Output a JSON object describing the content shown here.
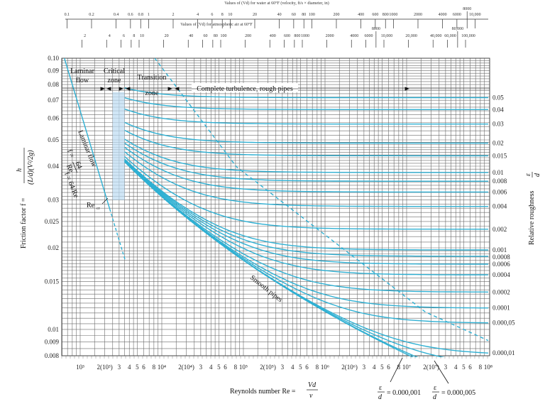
{
  "chart_data": {
    "type": "line",
    "title": "",
    "xlabel": "Reynolds number Re = Vd/ν",
    "xlabel_parts": {
      "text": "Reynolds number Re =",
      "num": "Vd",
      "den": "ν"
    },
    "ylabel": "Friction factor f = h / ((L/d)(V²/2g))",
    "ylabel_parts": {
      "text": "Friction factor f =",
      "num": "h",
      "den": "(L/d)(V²/2g)"
    },
    "right_label": "Relative roughness ε/d",
    "right_label_parts": {
      "text": "Relative roughness",
      "num": "ε",
      "den": "d"
    },
    "xscale": "log",
    "yscale": "log",
    "xlim": [
      600,
      100000000
    ],
    "ylim": [
      0.008,
      0.1
    ],
    "grid": true,
    "x_ticks": [
      {
        "re": 1000,
        "label": "10³"
      },
      {
        "re": 2000,
        "label": "2(10³)"
      },
      {
        "re": 3000,
        "label": "3"
      },
      {
        "re": 4000,
        "label": "4"
      },
      {
        "re": 5000,
        "label": "5"
      },
      {
        "re": 6000,
        "label": "6"
      },
      {
        "re": 8000,
        "label": "8"
      },
      {
        "re": 10000,
        "label": "10⁴"
      },
      {
        "re": 20000,
        "label": "2(10⁴)"
      },
      {
        "re": 30000,
        "label": "3"
      },
      {
        "re": 40000,
        "label": "4"
      },
      {
        "re": 50000,
        "label": "5"
      },
      {
        "re": 60000,
        "label": "6"
      },
      {
        "re": 80000,
        "label": "8"
      },
      {
        "re": 100000,
        "label": "10⁵"
      },
      {
        "re": 200000,
        "label": "2(10⁵)"
      },
      {
        "re": 300000,
        "label": "3"
      },
      {
        "re": 400000,
        "label": "4"
      },
      {
        "re": 500000,
        "label": "5"
      },
      {
        "re": 600000,
        "label": "6"
      },
      {
        "re": 800000,
        "label": "8"
      },
      {
        "re": 1000000,
        "label": "10⁶"
      },
      {
        "re": 2000000,
        "label": "2(10⁶)"
      },
      {
        "re": 3000000,
        "label": "3"
      },
      {
        "re": 4000000,
        "label": "4"
      },
      {
        "re": 5000000,
        "label": "5"
      },
      {
        "re": 6000000,
        "label": "6"
      },
      {
        "re": 8000000,
        "label": "8"
      },
      {
        "re": 10000000,
        "label": "10⁷"
      },
      {
        "re": 20000000,
        "label": "2(10⁷)"
      },
      {
        "re": 30000000,
        "label": "3"
      },
      {
        "re": 40000000,
        "label": "4"
      },
      {
        "re": 50000000,
        "label": "5"
      },
      {
        "re": 60000000,
        "label": "6"
      },
      {
        "re": 80000000,
        "label": "8"
      },
      {
        "re": 100000000,
        "label": "10⁸"
      }
    ],
    "y_ticks": [
      {
        "f": 0.1,
        "label": "0.10"
      },
      {
        "f": 0.09,
        "label": "0.09"
      },
      {
        "f": 0.08,
        "label": "0.08"
      },
      {
        "f": 0.07,
        "label": "0.07"
      },
      {
        "f": 0.06,
        "label": "0.06"
      },
      {
        "f": 0.05,
        "label": "0.05"
      },
      {
        "f": 0.04,
        "label": "0.04"
      },
      {
        "f": 0.03,
        "label": "0.03"
      },
      {
        "f": 0.025,
        "label": "0.025"
      },
      {
        "f": 0.02,
        "label": "0.02"
      },
      {
        "f": 0.015,
        "label": "0.015"
      },
      {
        "f": 0.01,
        "label": "0.01"
      },
      {
        "f": 0.009,
        "label": "0.009"
      },
      {
        "f": 0.008,
        "label": "0.008"
      }
    ],
    "top_water_scale": {
      "title": "Values of (Vd) for water at 60°F (velocity, ft/s × diameter, in)",
      "re_per_unit": 6887,
      "ticks": [
        {
          "v": 0.1,
          "label": "0.1"
        },
        {
          "v": 0.2,
          "label": "0.2"
        },
        {
          "v": 0.4,
          "label": "0.4"
        },
        {
          "v": 0.6,
          "label": "0.6"
        },
        {
          "v": 0.8,
          "label": "0.8"
        },
        {
          "v": 1,
          "label": "1"
        },
        {
          "v": 2,
          "label": "2"
        },
        {
          "v": 4,
          "label": "4"
        },
        {
          "v": 6,
          "label": "6"
        },
        {
          "v": 8,
          "label": "8"
        },
        {
          "v": 10,
          "label": "10"
        },
        {
          "v": 20,
          "label": "20"
        },
        {
          "v": 40,
          "label": "40"
        },
        {
          "v": 60,
          "label": "60"
        },
        {
          "v": 80,
          "label": "80"
        },
        {
          "v": 100,
          "label": "100"
        },
        {
          "v": 200,
          "label": "200"
        },
        {
          "v": 400,
          "label": "400"
        },
        {
          "v": 600,
          "label": "600"
        },
        {
          "v": 800,
          "label": "800"
        },
        {
          "v": 1000,
          "label": "1000"
        },
        {
          "v": 2000,
          "label": "2000"
        },
        {
          "v": 4000,
          "label": "4000"
        },
        {
          "v": 6000,
          "label": "6000"
        },
        {
          "v": 8000,
          "label": "8000"
        },
        {
          "v": 10000,
          "label": "10,000"
        }
      ]
    },
    "top_air_scale": {
      "title": "Values of (Vd) for atmospheric air at 60°F",
      "re_per_unit": 527,
      "ticks": [
        {
          "v": 2,
          "label": "2"
        },
        {
          "v": 4,
          "label": "4"
        },
        {
          "v": 6,
          "label": "6"
        },
        {
          "v": 8,
          "label": "8"
        },
        {
          "v": 10,
          "label": "10"
        },
        {
          "v": 20,
          "label": "20"
        },
        {
          "v": 40,
          "label": "40"
        },
        {
          "v": 60,
          "label": "60"
        },
        {
          "v": 80,
          "label": "80"
        },
        {
          "v": 100,
          "label": "100"
        },
        {
          "v": 200,
          "label": "200"
        },
        {
          "v": 400,
          "label": "400"
        },
        {
          "v": 600,
          "label": "600"
        },
        {
          "v": 800,
          "label": "800"
        },
        {
          "v": 1000,
          "label": "1000"
        },
        {
          "v": 2000,
          "label": "2000"
        },
        {
          "v": 4000,
          "label": "4000"
        },
        {
          "v": 6000,
          "label": "6000"
        },
        {
          "v": 8000,
          "label": "8000"
        },
        {
          "v": 10000,
          "label": "10,000"
        },
        {
          "v": 20000,
          "label": "20,000"
        },
        {
          "v": 40000,
          "label": "40,000"
        },
        {
          "v": 60000,
          "label": "60,000"
        },
        {
          "v": 80000,
          "label": "80,000"
        },
        {
          "v": 100000,
          "label": "100,000"
        }
      ]
    },
    "laminar": {
      "formula": "f = 64/Re",
      "re_start": 640,
      "re_solid_end": 2300,
      "re_dashed_end": 3550
    },
    "critical_zone_band": {
      "re_range": [
        2500,
        3500
      ],
      "f_range": [
        0.03,
        0.075
      ]
    },
    "transition_start_re": 3500,
    "relative_roughness": [
      {
        "eps_d": 0.05,
        "label": "0.05"
      },
      {
        "eps_d": 0.04,
        "label": "0.04"
      },
      {
        "eps_d": 0.03,
        "label": "0.03"
      },
      {
        "eps_d": 0.02,
        "label": "0.02"
      },
      {
        "eps_d": 0.015,
        "label": "0.015"
      },
      {
        "eps_d": 0.01,
        "label": "0.01"
      },
      {
        "eps_d": 0.008,
        "label": "0.008"
      },
      {
        "eps_d": 0.006,
        "label": "0.006"
      },
      {
        "eps_d": 0.004,
        "label": "0.004"
      },
      {
        "eps_d": 0.002,
        "label": "0.002"
      },
      {
        "eps_d": 0.001,
        "label": "0.001"
      },
      {
        "eps_d": 0.0008,
        "label": "0.0008"
      },
      {
        "eps_d": 0.0006,
        "label": "0.0006"
      },
      {
        "eps_d": 0.0004,
        "label": "0.0004"
      },
      {
        "eps_d": 0.0002,
        "label": "0.0002"
      },
      {
        "eps_d": 0.0001,
        "label": "0.0001"
      },
      {
        "eps_d": 5e-05,
        "label": "0.000,05"
      },
      {
        "eps_d": 1e-05,
        "label": "0.000,01"
      },
      {
        "eps_d": 5e-06,
        "label": ""
      },
      {
        "eps_d": 1e-06,
        "label": ""
      },
      {
        "eps_d": 0,
        "label": ""
      }
    ],
    "complete_turbulence_boundary": [
      {
        "re": 8200,
        "f": 0.1
      },
      {
        "re": 82000,
        "f": 0.0398
      },
      {
        "re": 17000000,
        "f": 0.0116
      },
      {
        "re": 100000000,
        "f": 0.0091
      }
    ],
    "annotations": {
      "laminar_flow": [
        "Laminar",
        "flow"
      ],
      "critical_zone": [
        "Critical",
        "zone"
      ],
      "transition_zone": [
        "Transition",
        "zone"
      ],
      "complete_turbulence": "Complete turbulence, rough pipes",
      "laminar_line_label": "Laminar flow",
      "laminar_formula": {
        "lhs": "f =",
        "num": "64",
        "den": "Re"
      },
      "re_cr": "Re",
      "re_cr_sub": "cr",
      "smooth_pipes": "Smooth pipes",
      "eps_000001": {
        "num": "ε",
        "den": "d",
        "value": "= 0.000,001",
        "re": 10000000
      },
      "eps_000005": {
        "num": "ε",
        "den": "d",
        "value": "= 0.000,005",
        "re": 25000000
      }
    },
    "colors": {
      "curve": "#2fb0d3",
      "grid": "#6a6a6a",
      "band": "#bcdcf2"
    }
  }
}
